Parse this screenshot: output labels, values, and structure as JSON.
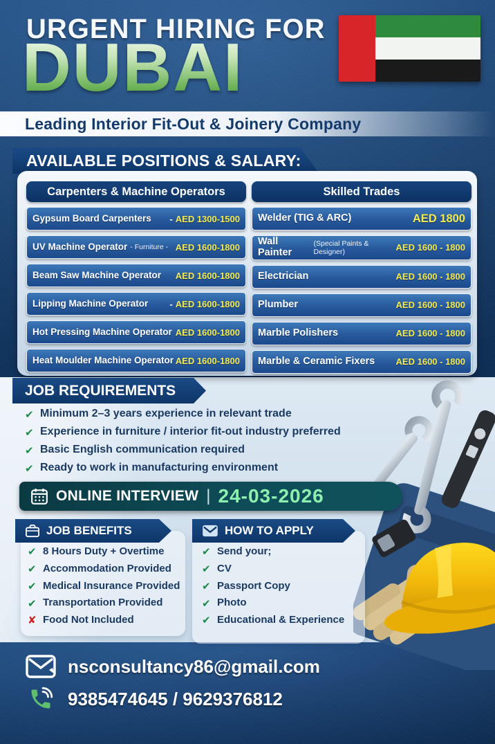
{
  "header": {
    "title_line": "URGENT HIRING FOR",
    "city": "DUBAI",
    "flag": "uae-flag",
    "subtitle": "Leading Interior Fit-Out & Joinery Company"
  },
  "positions": {
    "section_title": "AVAILABLE POSITIONS & SALARY:",
    "columns": [
      {
        "header": "Carpenters & Machine Operators",
        "rows": [
          {
            "role": "Gypsum Board Carpenters",
            "dash": "-",
            "salary": "AED 1300-1500"
          },
          {
            "role": "UV Machine Operator",
            "note": "- Furniture -",
            "salary": "AED 1600-1800"
          },
          {
            "role": "Beam Saw Machine Operator",
            "salary": "AED 1600-1800"
          },
          {
            "role": "Lipping Machine Operator",
            "dash": "-",
            "salary": "AED 1600-1800"
          },
          {
            "role": "Hot Pressing Machine Operator",
            "salary": "AED 1600-1800"
          },
          {
            "role": "Heat Moulder Machine Operator",
            "salary": "AED 1600-1800"
          }
        ]
      },
      {
        "header": "Skilled Trades",
        "rows": [
          {
            "role": "Welder (TIG & ARC)",
            "salary": "AED 1800",
            "highlight": true
          },
          {
            "role": "Wall Painter",
            "note": "(Special Paints & Designer)",
            "salary": "AED 1600 - 1800"
          },
          {
            "role": "Electrician",
            "salary": "AED 1600 - 1800"
          },
          {
            "role": "Plumber",
            "salary": "AED 1600 - 1800"
          },
          {
            "role": "Marble Polishers",
            "salary": "AED 1600 - 1800"
          },
          {
            "role": "Marble & Ceramic Fixers",
            "salary": "AED 1600 - 1800"
          }
        ]
      }
    ]
  },
  "requirements": {
    "section_title": "JOB REQUIREMENTS",
    "items": [
      "Minimum 2–3 years experience in relevant trade",
      "Experience in furniture / interior fit-out industry preferred",
      "Basic English communication required",
      "Ready to work in manufacturing environment"
    ]
  },
  "interview": {
    "icon": "calendar-icon",
    "label": "ONLINE INTERVIEW",
    "separator": "|",
    "date": "24-03-2026"
  },
  "benefits": {
    "section_title": "JOB BENEFITS",
    "icon": "briefcase-icon",
    "items": [
      {
        "text": "8 Hours Duty + Overtime",
        "mark": "check"
      },
      {
        "text": "Accommodation Provided",
        "mark": "check"
      },
      {
        "text": "Medical Insurance Provided",
        "mark": "check"
      },
      {
        "text": "Transportation Provided",
        "mark": "check"
      },
      {
        "text": "Food Not Included",
        "mark": "cross"
      }
    ]
  },
  "apply": {
    "section_title": "HOW TO APPLY",
    "icon": "envelope-icon",
    "items": [
      {
        "text": "Send your;",
        "mark": "check"
      },
      {
        "text": "CV",
        "mark": "check"
      },
      {
        "text": "Passport Copy",
        "mark": "check"
      },
      {
        "text": "Photo",
        "mark": "check"
      },
      {
        "text": "Educational & Experience",
        "mark": "check"
      }
    ]
  },
  "contact": {
    "email_icon": "envelope-icon",
    "email": "nsconsultancy86@gmail.com",
    "phone_icon": "phone-icon",
    "phone": "9385474645  /  9629376812"
  },
  "marks": {
    "check": "✔",
    "cross": "✘"
  },
  "colors": {
    "banner_navy": "#0e3668",
    "row_blue": "#27599c",
    "salary_yellow": "#f3ea52",
    "dubai_green": "#5aa34b",
    "interview_teal": "#0e4d58",
    "date_green": "#8ef0ae",
    "check_green": "#1e8a4a",
    "cross_red": "#cf2323",
    "text_navy": "#1b3a61",
    "flag_red": "#d8252a",
    "flag_green": "#2e8a3c"
  }
}
